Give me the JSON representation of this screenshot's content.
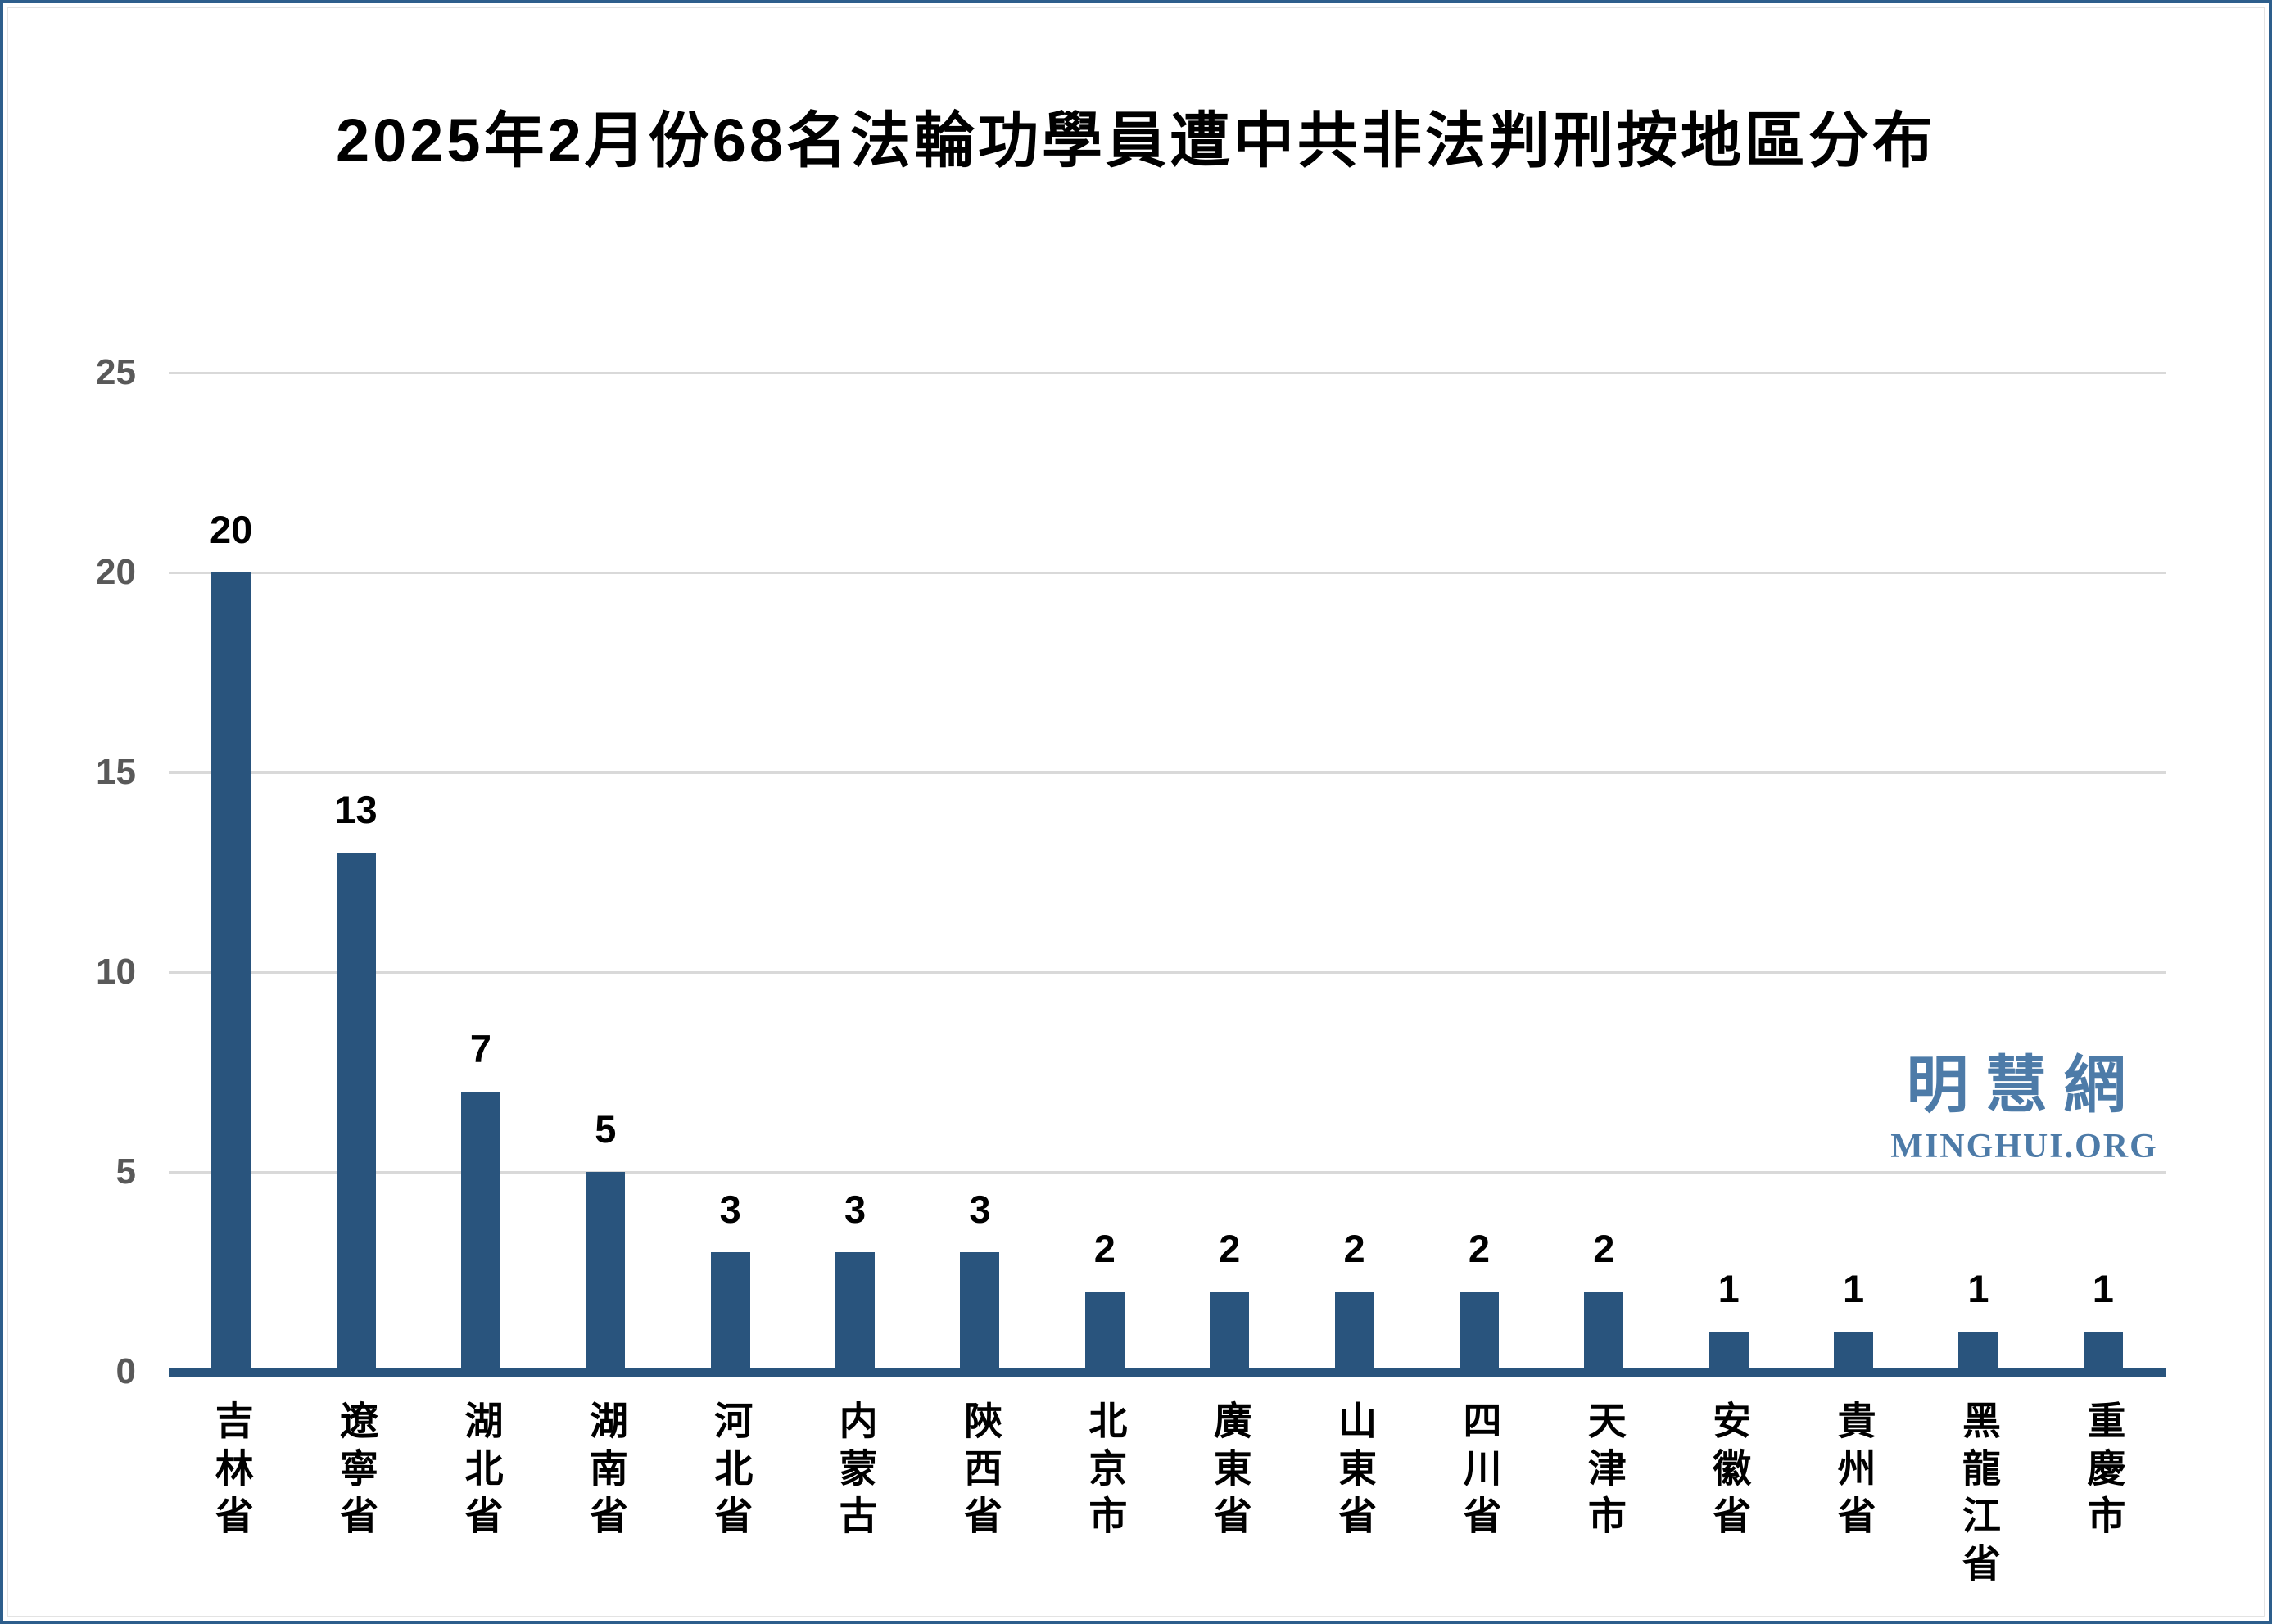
{
  "title": "2025年2月份68名法輪功學員遭中共非法判刑按地區分布",
  "watermark": {
    "cn": "明慧網",
    "en": "MINGHUI.ORG"
  },
  "y_axis": {
    "tick_labels": [
      "0",
      "5",
      "10",
      "15",
      "20",
      "25"
    ]
  },
  "colors": {
    "bar": "#29547d",
    "axis_line": "#29547d",
    "gridline": "#d9d9d9",
    "tick_label": "#595959",
    "watermark": "#4d7ba8",
    "frame_border": "#2d5e8c",
    "title_text": "#000000"
  },
  "chart_data": {
    "type": "bar",
    "title": "2025年2月份68名法輪功學員遭中共非法判刑按地區分布",
    "categories": [
      "吉林省",
      "遼寧省",
      "湖北省",
      "湖南省",
      "河北省",
      "内蒙古",
      "陝西省",
      "北京市",
      "廣東省",
      "山東省",
      "四川省",
      "天津市",
      "安徽省",
      "貴州省",
      "黑龍江省",
      "重慶市"
    ],
    "values": [
      20,
      13,
      7,
      5,
      3,
      3,
      3,
      2,
      2,
      2,
      2,
      2,
      1,
      1,
      1,
      1
    ],
    "data_labels": [
      20,
      13,
      7,
      5,
      3,
      3,
      3,
      2,
      2,
      2,
      2,
      2,
      1,
      1,
      1,
      1
    ],
    "xlabel": "",
    "ylabel": "",
    "ylim": [
      0,
      25
    ],
    "yticks": [
      0,
      5,
      10,
      15,
      20,
      25
    ],
    "grid": true,
    "legend": false,
    "data_label_position": "above-bar"
  }
}
